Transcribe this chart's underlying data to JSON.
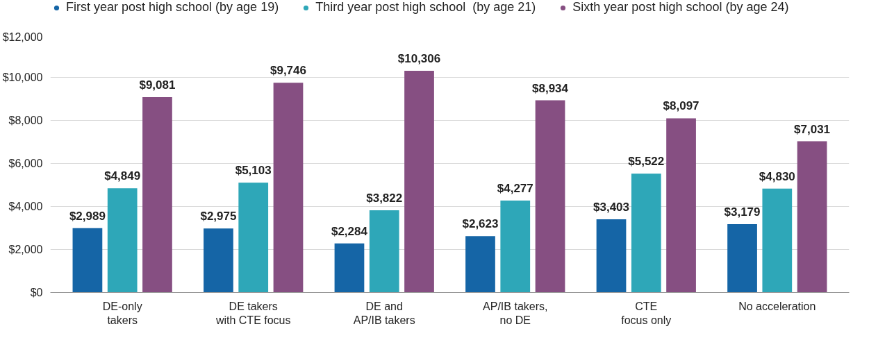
{
  "chart_data": {
    "type": "bar",
    "categories": [
      "DE-only\ntakers",
      "DE takers\nwith CTE focus",
      "DE and\nAP/IB takers",
      "AP/IB takers,\nno DE",
      "CTE\nfocus only",
      "No acceleration"
    ],
    "series": [
      {
        "name": "First year post high school (by age 19)",
        "color": "#1565a6",
        "values": [
          2989,
          2975,
          2284,
          2623,
          3403,
          3179
        ],
        "value_labels": [
          "$2,989",
          "$2,975",
          "$2,284",
          "$2,623",
          "$3,403",
          "$3,179"
        ]
      },
      {
        "name": "Third year post high school  (by age 21)",
        "color": "#2ea7b8",
        "values": [
          4849,
          5103,
          3822,
          4277,
          5522,
          4830
        ],
        "value_labels": [
          "$4,849",
          "$5,103",
          "$3,822",
          "$4,277",
          "$5,522",
          "$4,830"
        ]
      },
      {
        "name": "Sixth year post high school (by age 24)",
        "color": "#864f82",
        "values": [
          9081,
          9746,
          10306,
          8934,
          8097,
          7031
        ],
        "value_labels": [
          "$9,081",
          "$9,746",
          "$10,306",
          "$8,934",
          "$8,097",
          "$7,031"
        ]
      }
    ],
    "ylim": [
      0,
      12000
    ],
    "yticks": [
      {
        "value": 0,
        "label": "$0"
      },
      {
        "value": 2000,
        "label": "$2,000"
      },
      {
        "value": 4000,
        "label": "$4,000"
      },
      {
        "value": 6000,
        "label": "$6,000"
      },
      {
        "value": 8000,
        "label": "$8,000"
      },
      {
        "value": 10000,
        "label": "$10,000"
      },
      {
        "value": 12000,
        "label": "$12,000"
      }
    ],
    "grid": "y",
    "legend": "top left"
  }
}
